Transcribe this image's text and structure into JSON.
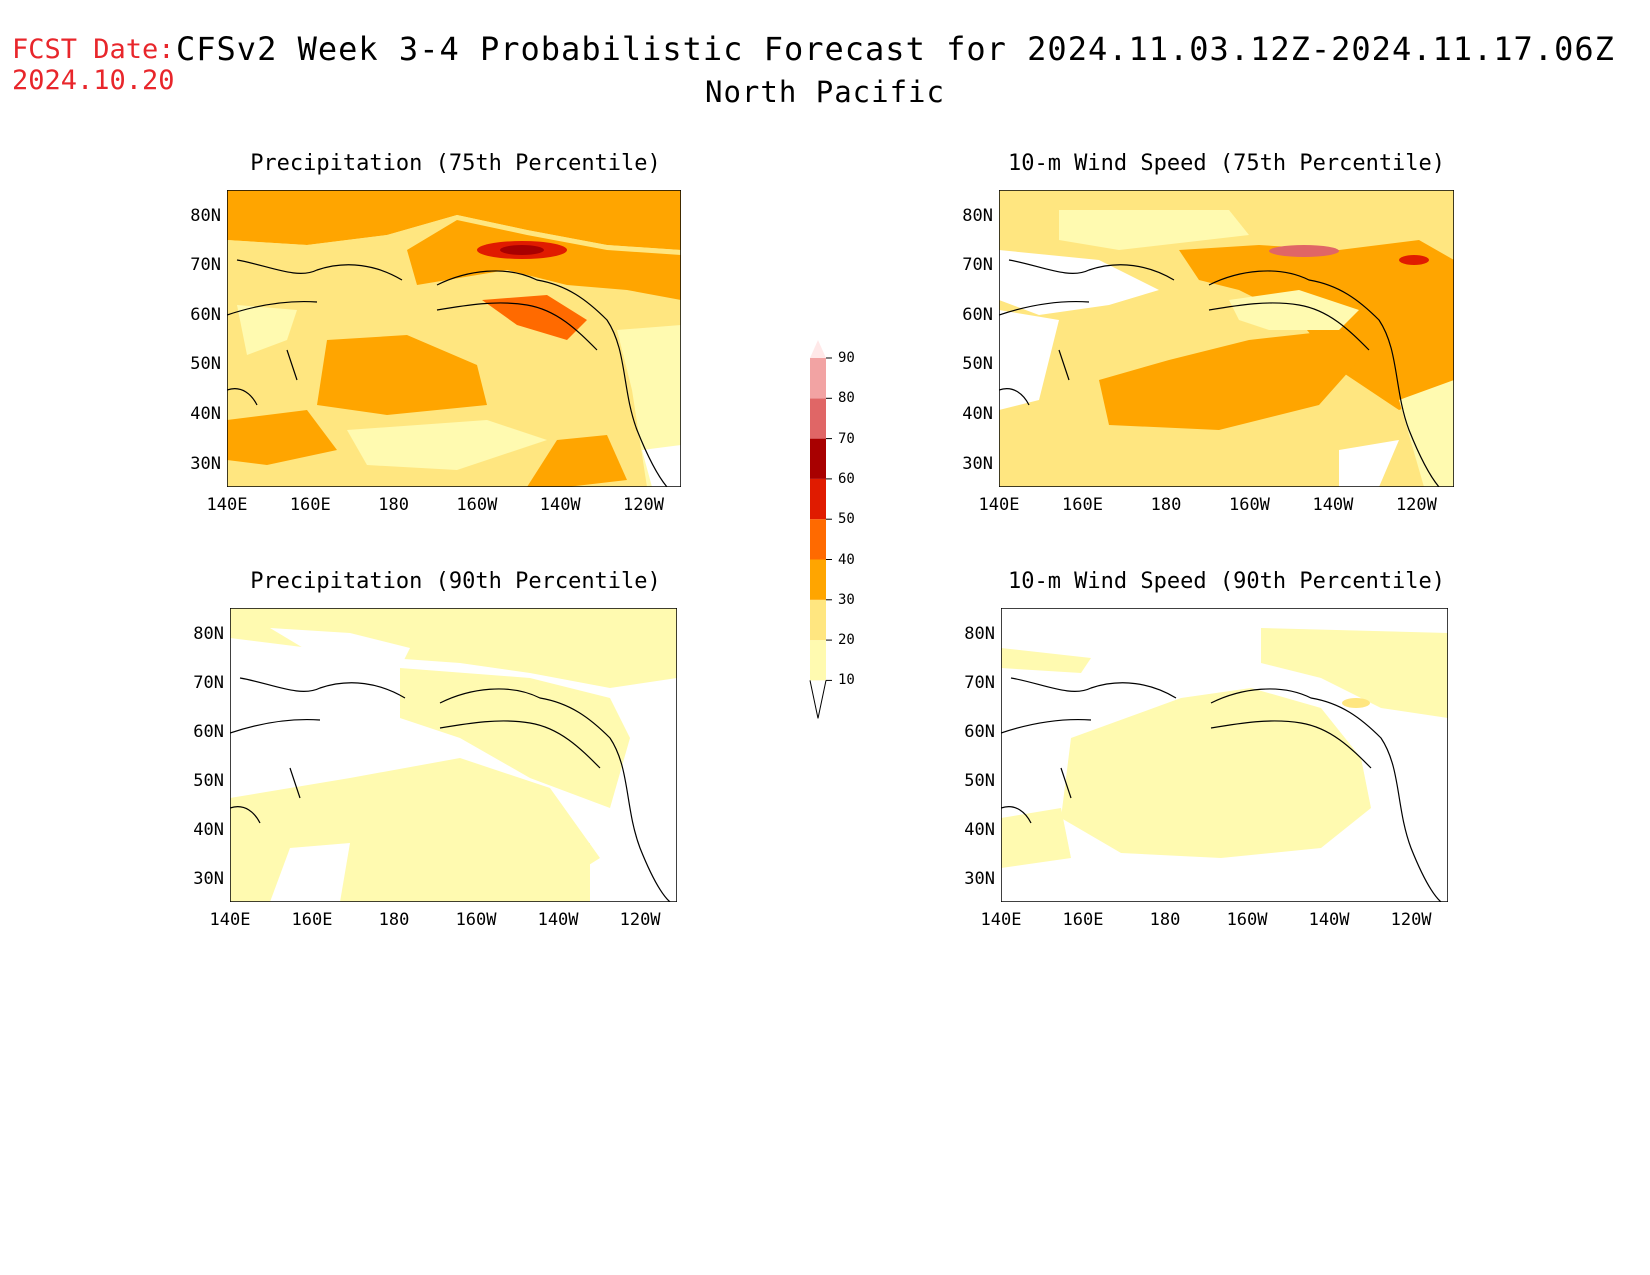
{
  "header": {
    "fcst_label": "FCST Date:",
    "fcst_date": "2024.10.20",
    "title": "CFSv2 Week 3-4 Probabilistic Forecast for 2024.11.03.12Z-2024.11.17.06Z",
    "region": "North Pacific"
  },
  "axes": {
    "lat_ticks": [
      "80N",
      "70N",
      "60N",
      "50N",
      "40N",
      "30N"
    ],
    "lon_ticks": [
      "140E",
      "160E",
      "180",
      "160W",
      "140W",
      "120W"
    ]
  },
  "panels": [
    {
      "id": "precip75",
      "title": "Precipitation (75th Percentile)"
    },
    {
      "id": "wind75",
      "title": "10-m Wind Speed (75th Percentile)"
    },
    {
      "id": "precip90",
      "title": "Precipitation (90th Percentile)"
    },
    {
      "id": "wind90",
      "title": "10-m Wind Speed (90th Percentile)"
    }
  ],
  "colorbar": {
    "levels": [
      "10",
      "20",
      "30",
      "40",
      "50",
      "60",
      "70",
      "80",
      "90"
    ],
    "colors": [
      "#fffab0",
      "#ffe680",
      "#ffa500",
      "#ff6a00",
      "#e01b00",
      "#a80000",
      "#e06666",
      "#f2a3a3",
      "#ffe8e8"
    ]
  }
}
